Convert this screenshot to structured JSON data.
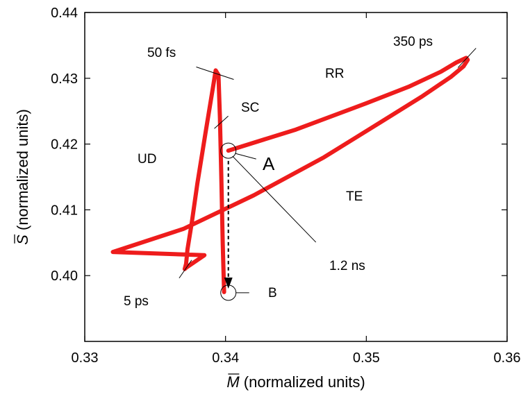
{
  "chart_data": {
    "type": "line",
    "title": "",
    "xlabel_symbol": "M",
    "xlabel_suffix": " (normalized units)",
    "ylabel_symbol": "S",
    "ylabel_suffix": " (normalized units)",
    "xlim": [
      0.33,
      0.36
    ],
    "ylim": [
      0.39,
      0.44
    ],
    "xticks": [
      0.33,
      0.34,
      0.35,
      0.36
    ],
    "xtick_labels": [
      "0.33",
      "0.34",
      "0.35",
      "0.36"
    ],
    "yticks": [
      0.4,
      0.41,
      0.42,
      0.43,
      0.44
    ],
    "ytick_labels": [
      "0.40",
      "0.41",
      "0.42",
      "0.43",
      "0.44"
    ],
    "grid": false,
    "line_color": "#ee1c1c",
    "series": [
      {
        "values": [
          [
            0.3402,
            0.419
          ],
          [
            0.345,
            0.4222
          ],
          [
            0.35,
            0.4262
          ],
          [
            0.353,
            0.4287
          ],
          [
            0.3553,
            0.431
          ],
          [
            0.3564,
            0.4324
          ],
          [
            0.3571,
            0.4331
          ],
          [
            0.3572,
            0.4328
          ],
          [
            0.3569,
            0.4318
          ],
          [
            0.356,
            0.4302
          ],
          [
            0.354,
            0.4273
          ],
          [
            0.351,
            0.4233
          ],
          [
            0.347,
            0.418
          ],
          [
            0.342,
            0.4122
          ],
          [
            0.337,
            0.4071
          ],
          [
            0.332,
            0.4036
          ],
          [
            0.3385,
            0.4031
          ],
          [
            0.3372,
            0.4012
          ],
          [
            0.3371,
            0.401
          ],
          [
            0.3372,
            0.4018
          ],
          [
            0.3373,
            0.404
          ],
          [
            0.3376,
            0.408
          ],
          [
            0.338,
            0.414
          ],
          [
            0.3386,
            0.422
          ],
          [
            0.3391,
            0.4285
          ],
          [
            0.3393,
            0.4312
          ],
          [
            0.3395,
            0.4305
          ],
          [
            0.3396,
            0.424
          ],
          [
            0.3397,
            0.415
          ],
          [
            0.3398,
            0.405
          ],
          [
            0.3399,
            0.3975
          ]
        ]
      }
    ],
    "annotations": [
      {
        "text": "50 fs",
        "tick_at": [
          0.3393,
          0.4313
        ]
      },
      {
        "text": "350 ps",
        "tick_at": [
          0.3571,
          0.4331
        ]
      },
      {
        "text": "5 ps",
        "tick_at": [
          0.3372,
          0.4011
        ]
      },
      {
        "text": "RR"
      },
      {
        "text": "SC"
      },
      {
        "text": "UD"
      },
      {
        "text": "TE"
      },
      {
        "text": "A",
        "circle_at": [
          0.3402,
          0.419
        ]
      },
      {
        "text": "B",
        "circle_at": [
          0.3402,
          0.3974
        ]
      },
      {
        "text": "1.2 ns"
      }
    ],
    "arrow": {
      "from": [
        0.3402,
        0.4185
      ],
      "to": [
        0.3402,
        0.3976
      ],
      "style": "dashed"
    }
  }
}
